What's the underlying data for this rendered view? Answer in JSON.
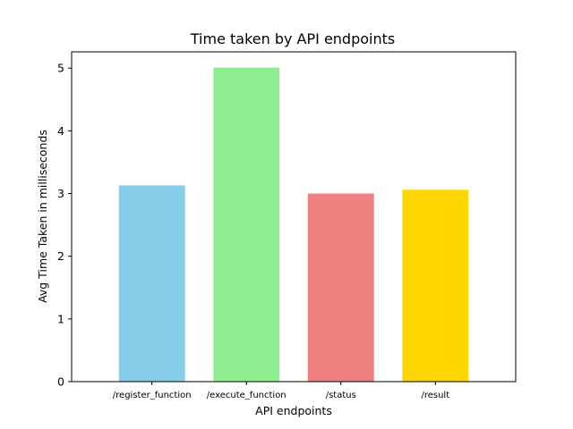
{
  "chart_data": {
    "type": "bar",
    "title": "Time taken by API endpoints",
    "xlabel": "API endpoints",
    "ylabel": "Avg Time Taken in milliseconds",
    "categories": [
      "/register_function",
      "/execute_function",
      "/status",
      "/result"
    ],
    "values": [
      3.13,
      5.01,
      3.0,
      3.06
    ],
    "colors": [
      "#87CEEB",
      "#90EE90",
      "#F08080",
      "#FFD700"
    ],
    "ylim": [
      0,
      5.26
    ],
    "yticks": [
      "0",
      "1",
      "2",
      "3",
      "4",
      "5"
    ],
    "grid": false,
    "legend": false
  }
}
